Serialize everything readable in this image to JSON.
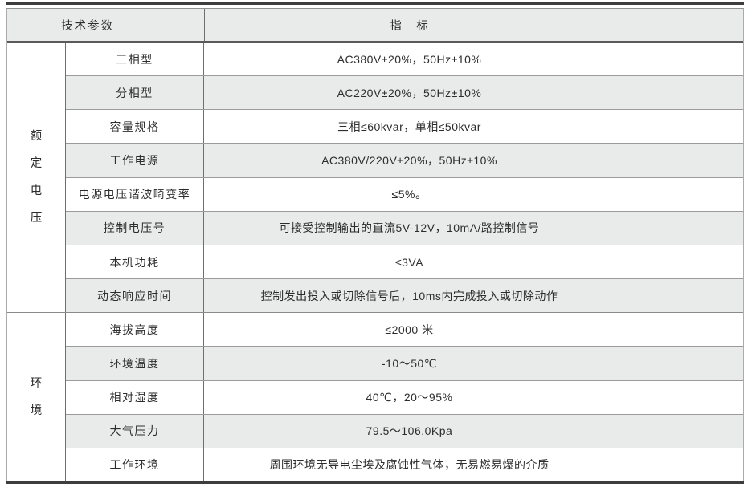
{
  "table": {
    "header": {
      "param": "技术参数",
      "value": "指　标"
    },
    "groups": [
      {
        "label": "额定电压",
        "rows": [
          {
            "param": "三相型",
            "value": "AC380V±20%，50Hz±10%"
          },
          {
            "param": "分相型",
            "value": "AC220V±20%，50Hz±10%"
          },
          {
            "param": "容量规格",
            "value": "三相≤60kvar，单相≤50kvar"
          },
          {
            "param": "工作电源",
            "value": "AC380V/220V±20%，50Hz±10%"
          },
          {
            "param": "电源电压谐波畸变率",
            "value": "≤5%。"
          },
          {
            "param": "控制电压号",
            "value": "可接受控制输出的直流5V-12V，10mA/路控制信号"
          },
          {
            "param": "本机功耗",
            "value": "≤3VA"
          },
          {
            "param": "动态响应时间",
            "value": "控制发出投入或切除信号后，10ms内完成投入或切除动作"
          }
        ]
      },
      {
        "label": "环境",
        "rows": [
          {
            "param": "海拔高度",
            "value": "≤2000 米"
          },
          {
            "param": "环境温度",
            "value": "-10～50℃"
          },
          {
            "param": "相对湿度",
            "value": "40℃，20～95%"
          },
          {
            "param": "大气压力",
            "value": "79.5～106.0Kpa"
          },
          {
            "param": "工作环境",
            "value": "周围环境无导电尘埃及腐蚀性气体，无易燃易爆的介质"
          }
        ]
      }
    ],
    "colors": {
      "stripe": "#e9eaea",
      "header_bg": "#e9eaea",
      "grid_line": "#9b9b9b",
      "divider_line": "#6f6f6f",
      "rule": "#3d3d3d",
      "text": "#2d2d2d"
    }
  }
}
